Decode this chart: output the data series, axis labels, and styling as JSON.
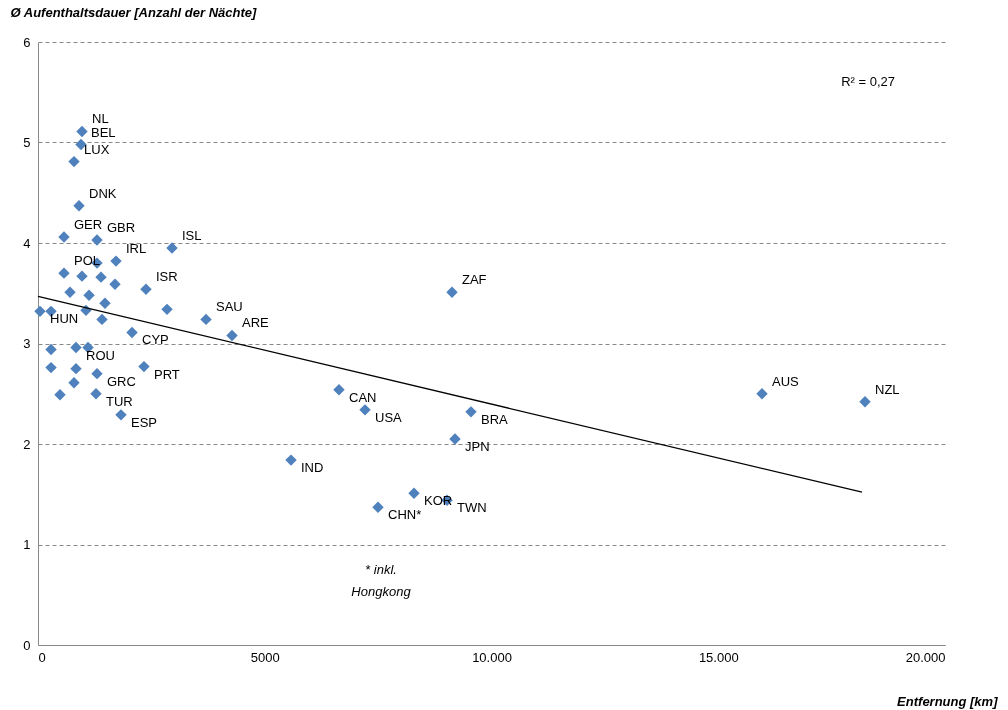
{
  "chart_data": {
    "type": "scatter",
    "xlabel": "Entfernung [km]",
    "ylabel": "Ø Aufenthaltsdauer [Anzahl der Nächte]",
    "xlim": [
      0,
      20000
    ],
    "ylim": [
      0,
      6
    ],
    "xticks": [
      0,
      5000,
      {
        "value": 10000,
        "label": "10.000"
      },
      {
        "value": 15000,
        "label": "15.000"
      },
      {
        "value": 20000,
        "label": "20.000"
      }
    ],
    "yticks": [
      0,
      1,
      2,
      3,
      4,
      5,
      6
    ],
    "grid": "y",
    "series": [
      {
        "marker": "diamond",
        "color": "#4f81bd",
        "x": [
          970,
          948,
          794,
          904,
          573,
          1301,
          2955,
          1720,
          1301,
          573,
          970,
          1389,
          1698,
          2381,
          706,
          1125,
          1477,
          2845,
          3705,
          44,
          287,
          1058,
          1411,
          4278,
          2073,
          287,
          838,
          1103,
          287,
          838,
          1301,
          794,
          485,
          1279,
          1830,
          2337,
          9129,
          6637,
          7211,
          9548,
          9195,
          5579,
          8291,
          9019,
          7497,
          15965,
          18236
        ],
        "values": [
          5.11,
          4.98,
          4.81,
          4.37,
          4.06,
          4.03,
          3.95,
          3.82,
          3.8,
          3.7,
          3.67,
          3.66,
          3.59,
          3.54,
          3.51,
          3.48,
          3.4,
          3.34,
          3.24,
          3.32,
          3.32,
          3.33,
          3.24,
          3.08,
          3.11,
          2.94,
          2.96,
          2.96,
          2.76,
          2.75,
          2.7,
          2.61,
          2.49,
          2.5,
          2.29,
          2.77,
          3.51,
          2.54,
          2.34,
          2.32,
          2.05,
          1.84,
          1.51,
          1.44,
          1.37,
          2.5,
          2.42
        ]
      },
      {
        "type": "line",
        "color": "#000000",
        "x": [
          0,
          18170
        ],
        "values": [
          3.47,
          1.52
        ]
      }
    ],
    "annotations": [
      {
        "text": "NL",
        "x": 970,
        "y": 5.11
      },
      {
        "text": "BEL",
        "x": 948,
        "y": 4.98
      },
      {
        "text": "LUX",
        "x": 794,
        "y": 4.81
      },
      {
        "text": "DNK",
        "x": 904,
        "y": 4.37
      },
      {
        "text": "GER",
        "x": 573,
        "y": 4.06
      },
      {
        "text": "GBR",
        "x": 1301,
        "y": 4.03
      },
      {
        "text": "ISL",
        "x": 2955,
        "y": 3.95
      },
      {
        "text": "IRL",
        "x": 1720,
        "y": 3.82
      },
      {
        "text": "POL",
        "x": 573,
        "y": 3.7
      },
      {
        "text": "ISR",
        "x": 2381,
        "y": 3.54
      },
      {
        "text": "SAU",
        "x": 3705,
        "y": 3.24
      },
      {
        "text": "HUN",
        "x": 44,
        "y": 3.32
      },
      {
        "text": "ARE",
        "x": 4278,
        "y": 3.08
      },
      {
        "text": "CYP",
        "x": 2073,
        "y": 3.11
      },
      {
        "text": "ROU",
        "x": 838,
        "y": 2.96
      },
      {
        "text": "GRC",
        "x": 1301,
        "y": 2.7
      },
      {
        "text": "TUR",
        "x": 1279,
        "y": 2.5
      },
      {
        "text": "ESP",
        "x": 1830,
        "y": 2.29
      },
      {
        "text": "PRT",
        "x": 2337,
        "y": 2.77
      },
      {
        "text": "ZAF",
        "x": 9129,
        "y": 3.51
      },
      {
        "text": "CAN",
        "x": 6637,
        "y": 2.54
      },
      {
        "text": "USA",
        "x": 7211,
        "y": 2.34
      },
      {
        "text": "BRA",
        "x": 9548,
        "y": 2.32
      },
      {
        "text": "JPN",
        "x": 9195,
        "y": 2.05
      },
      {
        "text": "IND",
        "x": 5579,
        "y": 1.84
      },
      {
        "text": "KOR",
        "x": 8291,
        "y": 1.51
      },
      {
        "text": "TWN",
        "x": 9019,
        "y": 1.44
      },
      {
        "text": "CHN*",
        "x": 7497,
        "y": 1.37
      },
      {
        "text": "AUS",
        "x": 15965,
        "y": 2.5
      },
      {
        "text": "NZL",
        "x": 18236,
        "y": 2.42
      },
      "R² = 0,27",
      "* inkl.\nHongkong"
    ]
  }
}
